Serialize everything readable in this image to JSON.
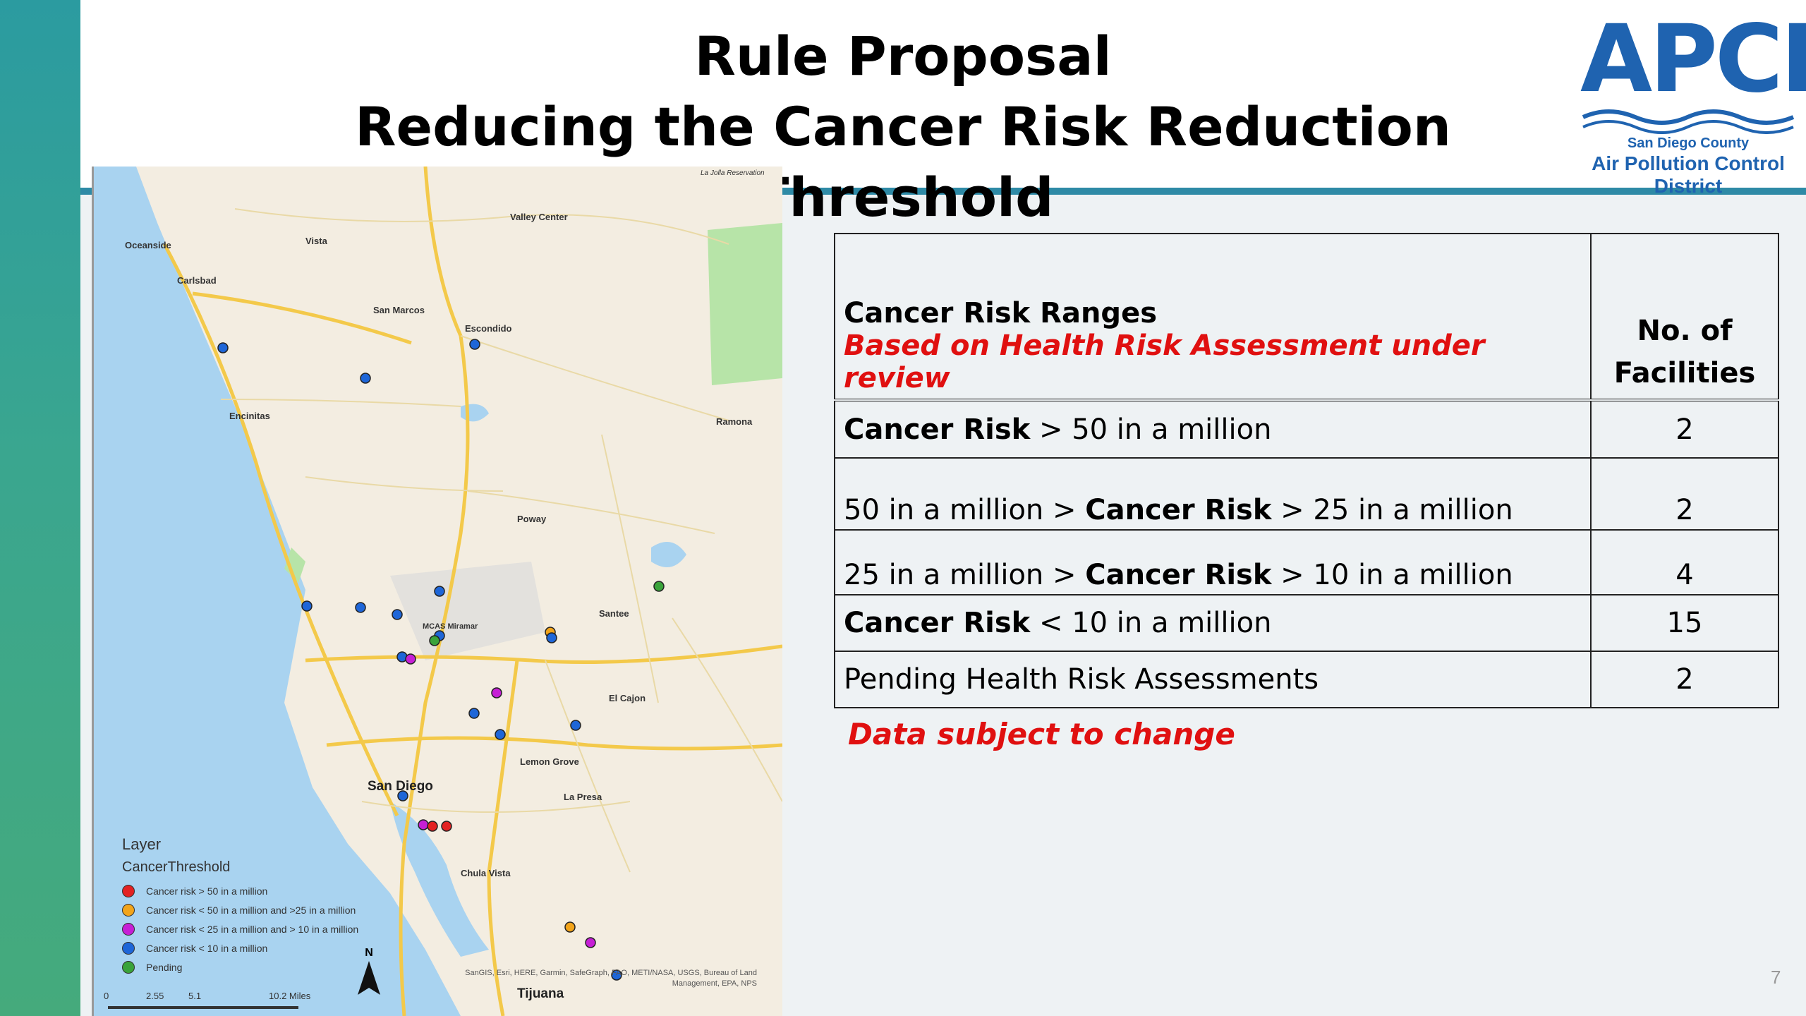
{
  "header": {
    "title_line1": "Rule Proposal",
    "title_line2": "Reducing the Cancer Risk Reduction Threshold"
  },
  "logo": {
    "main": "APCD",
    "county": "San Diego County",
    "district": "Air Pollution Control District",
    "color": "#1f63b0"
  },
  "map": {
    "places": [
      "Oceanside",
      "Vista",
      "Carlsbad",
      "San Marcos",
      "Escondido",
      "Valley Center",
      "Encinitas",
      "Ramona",
      "Poway",
      "Santee",
      "MCAS Miramar",
      "El Cajon",
      "Lemon Grove",
      "La Presa",
      "San Diego",
      "Chula Vista",
      "Tijuana",
      "La Jolla Reservation"
    ],
    "legend": {
      "title": "Layer",
      "subtitle": "CancerThreshold",
      "items": [
        {
          "label": "Cancer risk > 50 in a million",
          "color": "#e32222"
        },
        {
          "label": "Cancer risk < 50 in a million and >25 in a million",
          "color": "#f2a41a"
        },
        {
          "label": "Cancer risk < 25 in a million and > 10 in a million",
          "color": "#c61fd6"
        },
        {
          "label": "Cancer risk < 10 in a million",
          "color": "#1e66d8"
        },
        {
          "label": "Pending",
          "color": "#3aa33a"
        }
      ]
    },
    "attribution": "SanGIS, Esri, HERE, Garmin, SafeGraph, FAO, METI/NASA, USGS, Bureau of Land Management, EPA, NPS",
    "scale_labels": [
      "0",
      "2.55",
      "5.1",
      "10.2 Miles"
    ],
    "north_label": "N"
  },
  "table": {
    "header_label": "Cancer Risk Ranges",
    "header_sub": "Based on Health Risk Assessment under review",
    "header_count": "No. of Facilities",
    "rows": [
      {
        "pre": "",
        "bold": "Cancer Risk",
        "post": " > 50 in a million",
        "count": "2"
      },
      {
        "pre": "50 in a million > ",
        "bold": "Cancer Risk",
        "post": " > 25 in a million",
        "count": "2"
      },
      {
        "pre": "25 in a million > ",
        "bold": "Cancer Risk",
        "post": " > 10 in a million",
        "count": "4"
      },
      {
        "pre": "",
        "bold": "Cancer Risk",
        "post": " < 10 in a million",
        "count": "15"
      },
      {
        "pre": "Pending Health Risk Assessments",
        "bold": "",
        "post": "",
        "count": "2"
      }
    ]
  },
  "note": "Data subject to change",
  "page_number": "7"
}
